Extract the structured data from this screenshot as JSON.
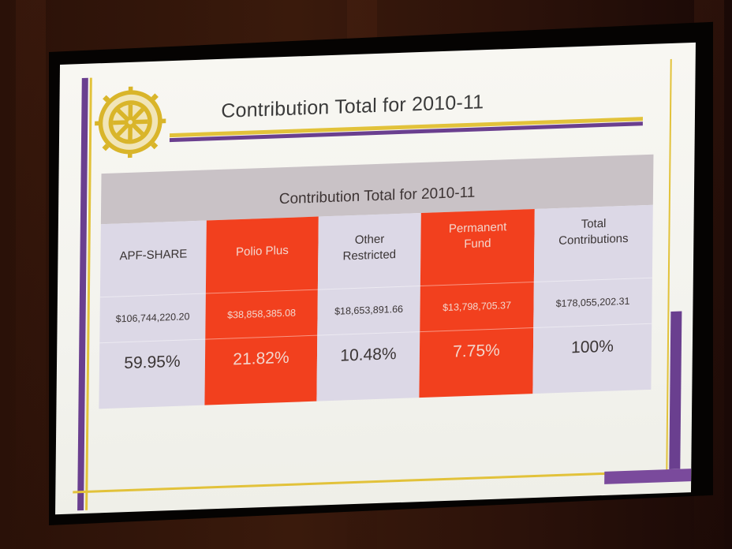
{
  "slide": {
    "title": "Contribution Total  for 2010-11",
    "colors": {
      "purple": "#6a3f8f",
      "gold": "#e2c23a",
      "highlight_red": "#f2401e",
      "column_gray": "#dcd8e6",
      "header_gray": "#c9c2c6"
    },
    "logo": "rotary-international-wheel-icon"
  },
  "table": {
    "title": "Contribution Total for 2010-11",
    "columns": [
      {
        "header": "APF-SHARE",
        "amount": "$106,744,220.20",
        "percent": "59.95%",
        "highlighted": false
      },
      {
        "header": "Polio Plus",
        "amount": "$38,858,385.08",
        "percent": "21.82%",
        "highlighted": true
      },
      {
        "header_line1": "Other",
        "header_line2": "Restricted",
        "amount": "$18,653,891.66",
        "percent": "10.48%",
        "highlighted": false
      },
      {
        "header_line1": "Permanent",
        "header_line2": "Fund",
        "amount": "$13,798,705.37",
        "percent": "7.75%",
        "highlighted": true
      },
      {
        "header_line1": "Total",
        "header_line2": "Contributions",
        "amount": "$178,055,202.31",
        "percent": "100%",
        "highlighted": false
      }
    ]
  }
}
